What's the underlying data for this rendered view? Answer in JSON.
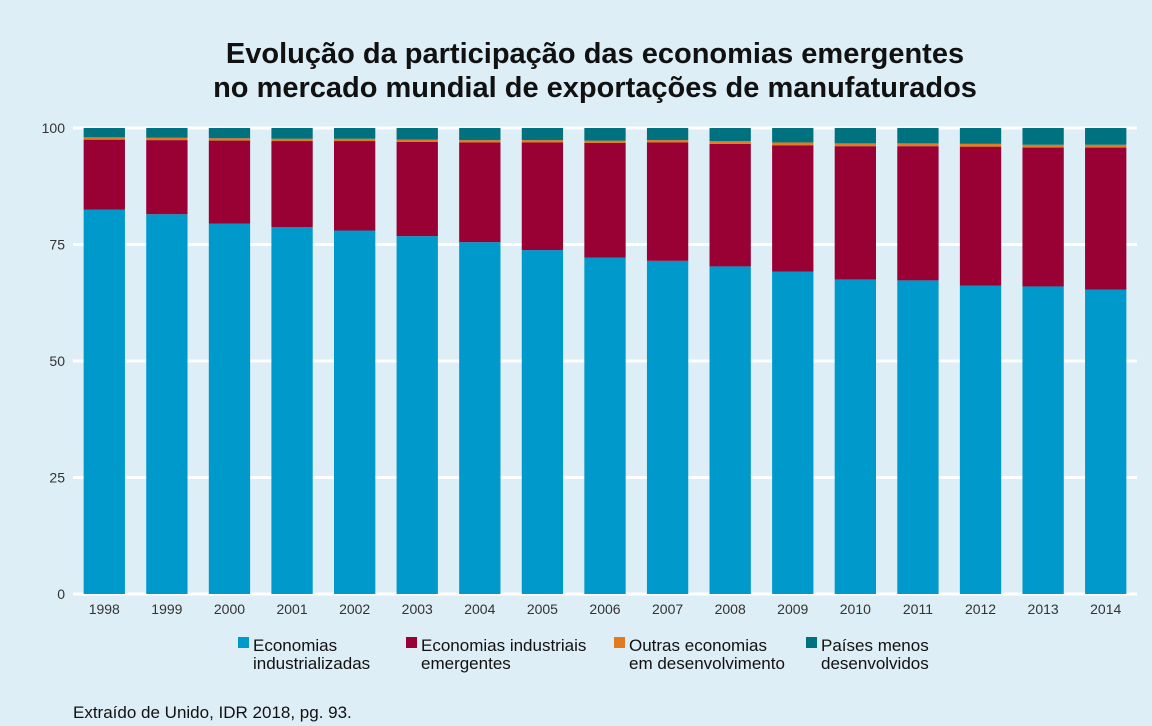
{
  "chart_data": {
    "type": "bar",
    "stacked": true,
    "title_lines": [
      "Evolução da participação das economias emergentes",
      "no mercado mundial de exportações de manufaturados"
    ],
    "xlabel": "",
    "ylabel": "",
    "ylim": [
      0,
      100
    ],
    "yticks": [
      0,
      25,
      50,
      75,
      100
    ],
    "grid": true,
    "legend_position": "bottom",
    "categories": [
      "1998",
      "1999",
      "2000",
      "2001",
      "2002",
      "2003",
      "2004",
      "2005",
      "2006",
      "2007",
      "2008",
      "2009",
      "2010",
      "2011",
      "2012",
      "2013",
      "2014"
    ],
    "series": [
      {
        "name_lines": [
          "Economias",
          "industrializadas"
        ],
        "color": "#0099cc",
        "values": [
          82.5,
          81.5,
          79.5,
          78.7,
          78.0,
          76.8,
          75.5,
          73.8,
          72.2,
          71.5,
          70.3,
          69.2,
          67.5,
          67.3,
          66.2,
          66.0,
          65.3
        ]
      },
      {
        "name_lines": [
          "Economias industriais",
          "emergentes"
        ],
        "color": "#990033",
        "values": [
          15.0,
          15.9,
          17.8,
          18.5,
          19.2,
          20.2,
          21.4,
          23.1,
          24.6,
          25.4,
          26.3,
          27.1,
          28.6,
          28.8,
          29.8,
          29.8,
          30.5
        ]
      },
      {
        "name_lines": [
          "Outras economias",
          "em desenvolvimento"
        ],
        "color": "#e07b20",
        "values": [
          0.5,
          0.5,
          0.5,
          0.5,
          0.5,
          0.5,
          0.5,
          0.5,
          0.5,
          0.5,
          0.6,
          0.6,
          0.6,
          0.6,
          0.6,
          0.6,
          0.6
        ]
      },
      {
        "name_lines": [
          "Países menos",
          "desenvolvidos"
        ],
        "color": "#00727f",
        "values": [
          2.0,
          2.1,
          2.2,
          2.3,
          2.3,
          2.5,
          2.6,
          2.6,
          2.7,
          2.6,
          2.8,
          3.1,
          3.3,
          3.3,
          3.4,
          3.6,
          3.6
        ]
      }
    ]
  },
  "caption": "Extraído de Unido, IDR 2018, pg. 93."
}
